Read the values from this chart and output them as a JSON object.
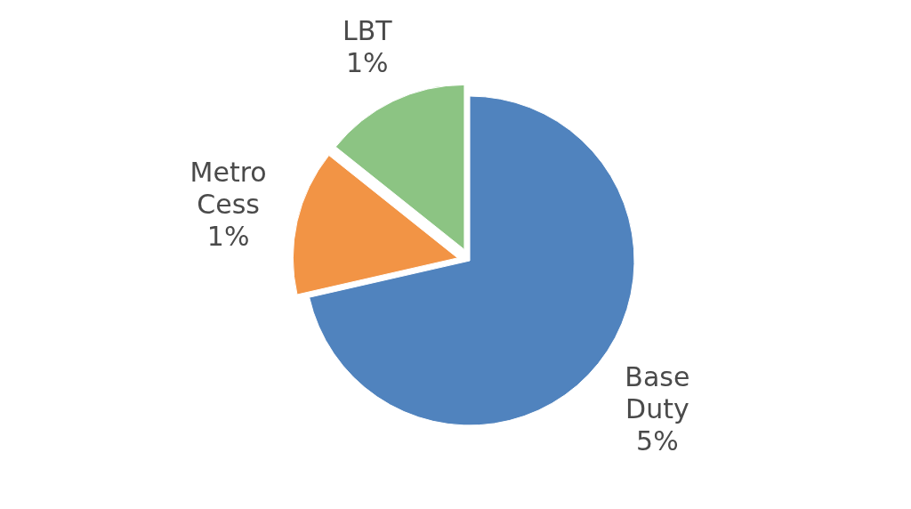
{
  "chart_data": {
    "type": "pie",
    "categories": [
      "Base Duty",
      "Metro Cess",
      "LBT"
    ],
    "values": [
      5,
      1,
      1
    ],
    "value_labels": [
      "5%",
      "1%",
      "1%"
    ],
    "colors": [
      "#5083be",
      "#f29445",
      "#8cc483"
    ]
  }
}
